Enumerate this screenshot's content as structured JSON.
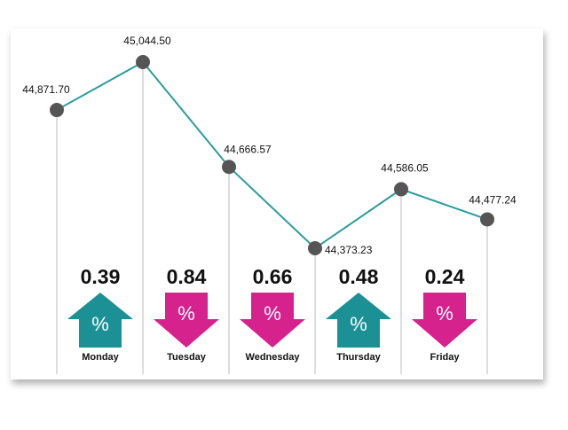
{
  "chart_data": {
    "type": "line",
    "categories": [
      null,
      "Monday",
      "Tuesday",
      "Wednesday",
      "Thursday",
      "Friday"
    ],
    "values": [
      44871.7,
      45044.5,
      44666.57,
      44373.23,
      44586.05,
      44477.24
    ],
    "value_labels": [
      "44,871.70",
      "45,044.50",
      "44,666.57",
      "44,373.23",
      "44,586.05",
      "44,477.24"
    ],
    "changes": [
      null,
      0.39,
      0.84,
      0.66,
      0.48,
      0.24
    ],
    "directions": [
      null,
      "up",
      "down",
      "down",
      "up",
      "down"
    ],
    "symbol": "%",
    "color": "#2a9d9f",
    "marker_color": "#555555",
    "up_color": "#1b9196",
    "down_color": "#d5228c"
  }
}
